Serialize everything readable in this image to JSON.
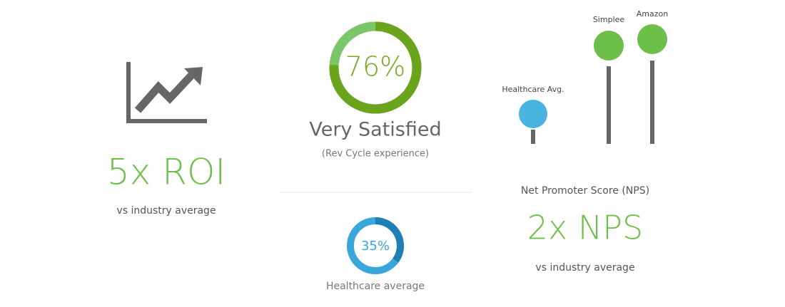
{
  "roi": {
    "headline": "5x ROI",
    "caption": "vs industry average"
  },
  "satisfaction": {
    "value": 76,
    "value_label": "76%",
    "title": "Very Satisfied",
    "subtitle": "(Rev Cycle experience)"
  },
  "healthcare": {
    "value": 35,
    "value_label": "35%",
    "caption": "Healthcare average"
  },
  "nps": {
    "title": "Net Promoter Score (NPS)",
    "headline": "2x NPS",
    "caption": "vs industry average",
    "lollipops": [
      "Healthcare Avg.",
      "Simplee",
      "Amazon"
    ]
  }
}
